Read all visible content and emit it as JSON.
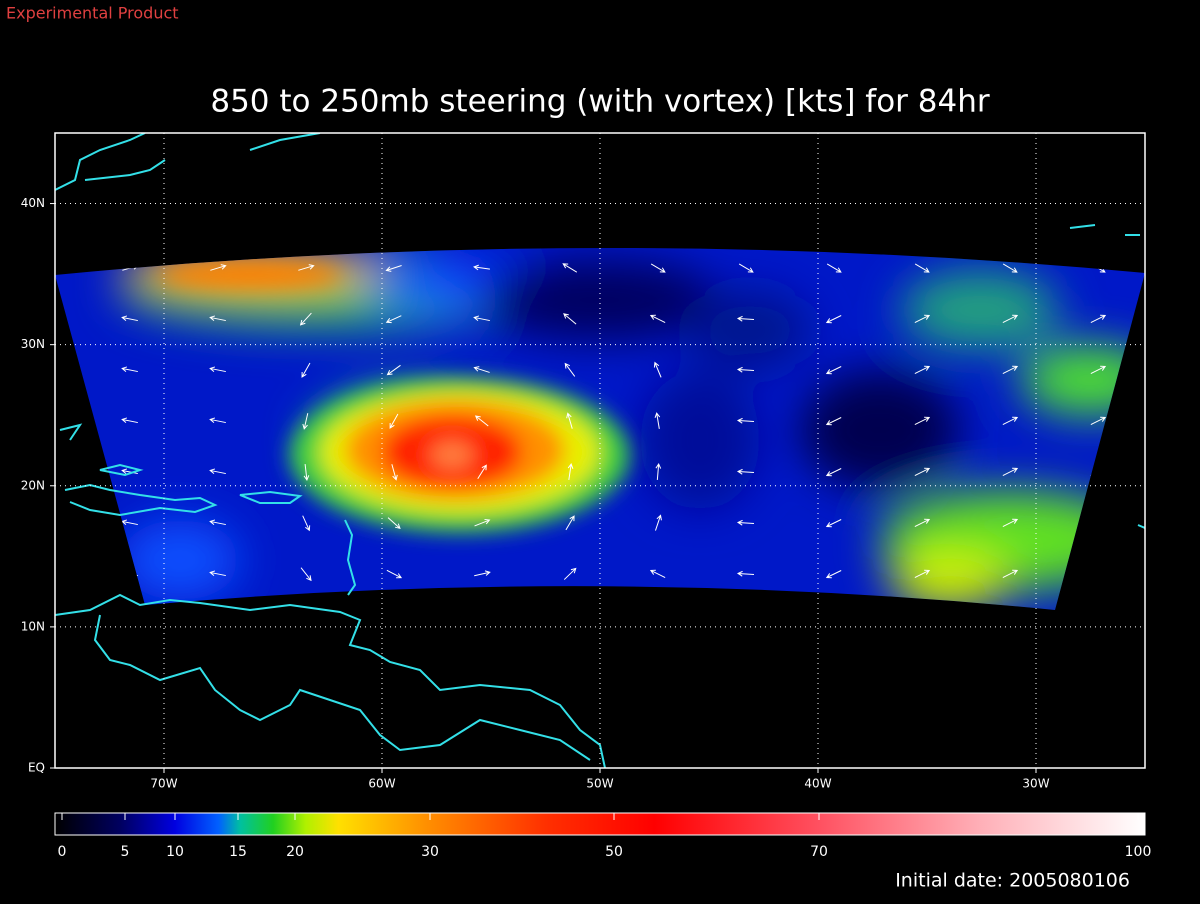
{
  "header": {
    "note": "Experimental Product",
    "title": "850 to 250mb steering (with vortex) [kts] for 84hr"
  },
  "map": {
    "xlim": [
      -75,
      -25
    ],
    "ylim": [
      0,
      45
    ],
    "xticks": [
      {
        "value": -70,
        "label": "70W"
      },
      {
        "value": -60,
        "label": "60W"
      },
      {
        "value": -50,
        "label": "50W"
      },
      {
        "value": -40,
        "label": "40W"
      },
      {
        "value": -30,
        "label": "30W"
      }
    ],
    "yticks": [
      {
        "value": 0,
        "label": "EQ"
      },
      {
        "value": 10,
        "label": "10N"
      },
      {
        "value": 20,
        "label": "20N"
      },
      {
        "value": 30,
        "label": "30N"
      },
      {
        "value": 40,
        "label": "40N"
      }
    ],
    "grid": true
  },
  "colorbar": {
    "ticks": [
      0,
      5,
      10,
      15,
      20,
      30,
      50,
      70,
      100
    ]
  },
  "footer": {
    "initial_date": "Initial date: 2005080106"
  }
}
